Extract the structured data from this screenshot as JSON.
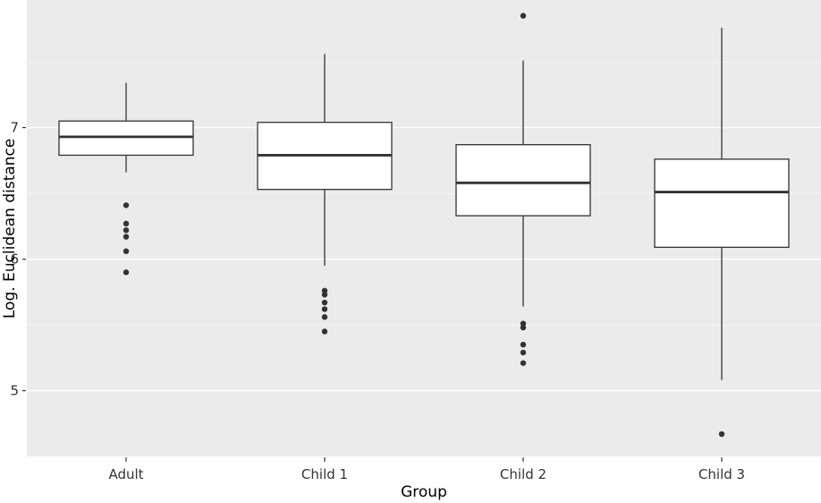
{
  "chart_data": {
    "type": "boxplot",
    "title": "",
    "xlabel": "Group",
    "ylabel": "Log. Euclidean distance",
    "categories": [
      "Adult",
      "Child 1",
      "Child 2",
      "Child 3"
    ],
    "y_ticks": [
      5,
      6,
      7
    ],
    "y_minor_ticks": [
      4.5,
      5.5,
      6.5,
      7.5
    ],
    "ylim": [
      4.5,
      7.97
    ],
    "legend": "none",
    "grid": "major-and-minor-horizontal",
    "series": [
      {
        "name": "Adult",
        "q1": 6.79,
        "median": 6.93,
        "q3": 7.05,
        "whisker_low": 6.66,
        "whisker_high": 7.34,
        "outliers": [
          6.41,
          6.27,
          6.22,
          6.17,
          6.06,
          5.9
        ]
      },
      {
        "name": "Child 1",
        "q1": 6.53,
        "median": 6.79,
        "q3": 7.04,
        "whisker_low": 5.95,
        "whisker_high": 7.56,
        "outliers": [
          5.76,
          5.73,
          5.67,
          5.62,
          5.56,
          5.45
        ]
      },
      {
        "name": "Child 2",
        "q1": 6.33,
        "median": 6.58,
        "q3": 6.87,
        "whisker_low": 5.64,
        "whisker_high": 7.51,
        "outliers": [
          7.85,
          5.51,
          5.48,
          5.35,
          5.29,
          5.21
        ]
      },
      {
        "name": "Child 3",
        "q1": 6.09,
        "median": 6.51,
        "q3": 6.76,
        "whisker_low": 5.08,
        "whisker_high": 7.76,
        "outliers": [
          4.67
        ]
      }
    ],
    "colors": {
      "panel_bg": "#ebebeb",
      "grid_major": "#ffffff",
      "grid_minor": "#f5f5f5",
      "box_fill": "#ffffff",
      "box_stroke": "#333333",
      "outlier_fill": "#333333",
      "axis_text": "#333333",
      "tick_mark": "#333333"
    }
  }
}
